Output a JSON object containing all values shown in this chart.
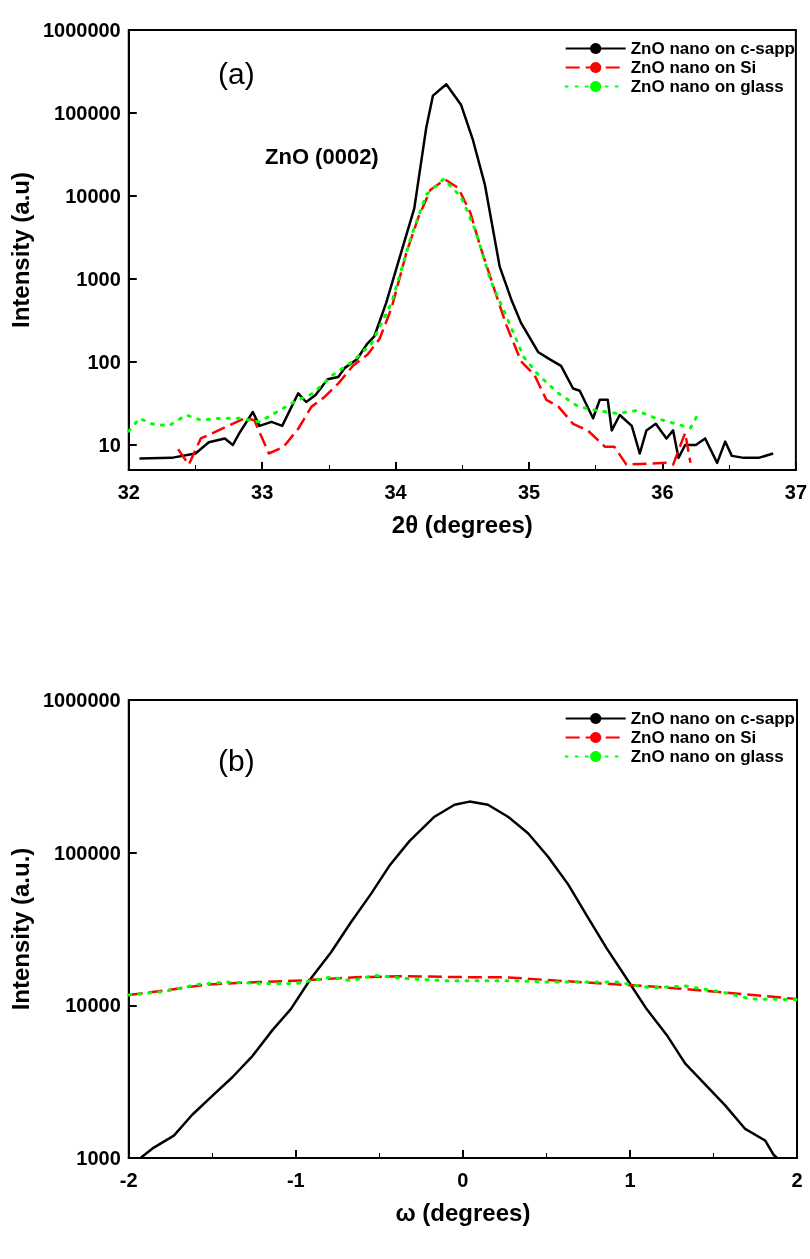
{
  "chart_data": [
    {
      "type": "line",
      "xlabel": "2θ (degrees)",
      "ylabel": "Intensity (a.u)",
      "annotations": [
        "(a)",
        "ZnO (0002)"
      ],
      "log": "y",
      "xlim": [
        32,
        37
      ],
      "xticks": [
        32,
        33,
        34,
        35,
        36,
        37
      ],
      "ylim": [
        5,
        1000000
      ],
      "yticks": [
        10,
        100,
        1000,
        10000,
        100000,
        1000000
      ],
      "grid": false,
      "legend": "top right",
      "marker": "none",
      "series": [
        {
          "name": "ZnO nano on c-sapp",
          "color": "#000000",
          "line_style": "solid",
          "x": [
            32.08,
            32.32,
            32.5,
            32.6,
            32.72,
            32.78,
            32.83,
            32.93,
            32.98,
            33.07,
            33.15,
            33.27,
            33.33,
            33.4,
            33.49,
            33.57,
            33.62,
            33.71,
            33.79,
            33.84,
            33.93,
            34.04,
            34.14,
            34.23,
            34.28,
            34.38,
            34.49,
            34.58,
            34.67,
            34.78,
            34.87,
            34.94,
            35.07,
            35.15,
            35.24,
            35.33,
            35.38,
            35.48,
            35.53,
            35.59,
            35.62,
            35.68,
            35.77,
            35.83,
            35.88,
            35.95,
            36.03,
            36.08,
            36.12,
            36.17,
            36.25,
            36.32,
            36.41,
            36.47,
            36.52,
            36.61,
            36.72,
            36.83
          ],
          "values": [
            6.9,
            7,
            7.9,
            10.8,
            12,
            10,
            14,
            25,
            17,
            19,
            17,
            42,
            33,
            40,
            62,
            66,
            85,
            108,
            168,
            203,
            520,
            2050,
            7100,
            67000,
            162000,
            222000,
            126000,
            47000,
            13500,
            1410,
            550,
            296,
            131,
            109,
            90,
            48,
            45,
            21,
            35,
            35,
            15,
            23,
            17,
            7.9,
            15,
            18,
            12,
            15,
            7,
            10,
            10,
            12,
            6.1,
            11,
            7.4,
            7,
            7,
            7.9
          ]
        },
        {
          "name": "ZnO nano on Si",
          "color": "#ff0000",
          "line_style": "dashed",
          "x": [
            32.37,
            32.45,
            32.54,
            32.87,
            32.94,
            33.05,
            33.16,
            33.27,
            33.37,
            33.46,
            33.57,
            33.68,
            33.79,
            33.88,
            33.97,
            34.08,
            34.17,
            34.26,
            34.37,
            34.47,
            34.56,
            34.63,
            34.74,
            34.83,
            34.94,
            35.04,
            35.13,
            35.22,
            35.33,
            35.44,
            35.57,
            35.64,
            35.73,
            36.03,
            36.08,
            36.17,
            36.21
          ],
          "values": [
            8.9,
            5.8,
            12,
            21,
            20,
            7.9,
            9.5,
            15.7,
            29,
            37,
            55,
            90,
            123,
            190,
            450,
            2050,
            5500,
            11800,
            15800,
            12500,
            6300,
            2600,
            750,
            278,
            102,
            70,
            35,
            29,
            18,
            15,
            9.5,
            9.5,
            5.8,
            6.1,
            5.8,
            14,
            6.1
          ]
        },
        {
          "name": "ZnO nano on glass",
          "color": "#00ff00",
          "line_style": "dotted",
          "x": [
            32,
            32.08,
            32.17,
            32.3,
            32.43,
            32.54,
            32.69,
            32.83,
            32.98,
            33.09,
            33.24,
            33.38,
            33.53,
            33.68,
            33.82,
            33.97,
            34.12,
            34.23,
            34.36,
            34.49,
            34.6,
            34.71,
            34.83,
            34.96,
            35.07,
            35.22,
            35.37,
            35.51,
            35.66,
            35.81,
            35.95,
            36.1,
            36.21,
            36.27
          ],
          "values": [
            14.7,
            21,
            18,
            17,
            23,
            20,
            21,
            21,
            19,
            24,
            33,
            42,
            70,
            102,
            168,
            520,
            3370,
            10400,
            16000,
            9800,
            3800,
            970,
            356,
            115,
            70,
            42,
            29,
            26,
            24,
            26,
            21,
            18,
            16,
            24
          ]
        }
      ]
    },
    {
      "type": "line",
      "xlabel": "ω (degrees)",
      "ylabel": "Intensity (a.u.)",
      "annotations": [
        "(b)"
      ],
      "log": "y",
      "xlim": [
        -2,
        2
      ],
      "xticks": [
        -2,
        -1,
        0,
        1,
        2
      ],
      "ylim": [
        1000,
        1000000
      ],
      "yticks": [
        1000,
        10000,
        100000,
        1000000
      ],
      "grid": false,
      "legend": "top right",
      "marker": "none",
      "series": [
        {
          "name": "ZnO nano on c-sapp",
          "color": "#000000",
          "line_style": "solid",
          "x": [
            -1.93,
            -1.85,
            -1.73,
            -1.62,
            -1.5,
            -1.38,
            -1.26,
            -1.14,
            -1.03,
            -0.91,
            -0.79,
            -0.67,
            -0.55,
            -0.44,
            -0.32,
            -0.17,
            -0.05,
            0.04,
            0.15,
            0.27,
            0.39,
            0.51,
            0.63,
            0.74,
            0.86,
            0.98,
            1.1,
            1.22,
            1.33,
            1.45,
            1.57,
            1.69,
            1.81,
            1.86,
            1.88
          ],
          "values": [
            1000,
            1170,
            1400,
            1920,
            2550,
            3380,
            4650,
            6880,
            9450,
            15000,
            22200,
            35000,
            53700,
            82000,
            119000,
            172000,
            206000,
            216000,
            206000,
            172000,
            134000,
            94000,
            62000,
            39000,
            23700,
            15000,
            9450,
            6400,
            4170,
            3040,
            2210,
            1550,
            1300,
            1050,
            1000
          ]
        },
        {
          "name": "ZnO nano on Si",
          "color": "#ff0000",
          "line_style": "dashed",
          "x": [
            -2,
            -1.79,
            -1.53,
            -1.23,
            -0.94,
            -0.64,
            -0.35,
            0.01,
            0.24,
            0.53,
            0.83,
            1.13,
            1.36,
            1.69,
            2
          ],
          "values": [
            11700,
            12500,
            13700,
            14200,
            14600,
            15300,
            15500,
            15300,
            15300,
            14600,
            13900,
            13300,
            12700,
            11800,
            11000
          ]
        },
        {
          "name": "ZnO nano on glass",
          "color": "#00ff00",
          "line_style": "dotted",
          "x": [
            -2,
            -1.79,
            -1.59,
            -1.41,
            -1.2,
            -1,
            -0.79,
            -0.67,
            -0.53,
            -0.32,
            -0.11,
            0.09,
            0.3,
            0.51,
            0.71,
            0.92,
            1.13,
            1.33,
            1.57,
            1.72,
            2
          ],
          "values": [
            11700,
            12300,
            13700,
            14200,
            13900,
            13900,
            15300,
            14500,
            15700,
            14900,
            14500,
            14500,
            14500,
            14200,
            14200,
            14200,
            13000,
            13400,
            12100,
            11000,
            10900
          ]
        }
      ]
    }
  ]
}
